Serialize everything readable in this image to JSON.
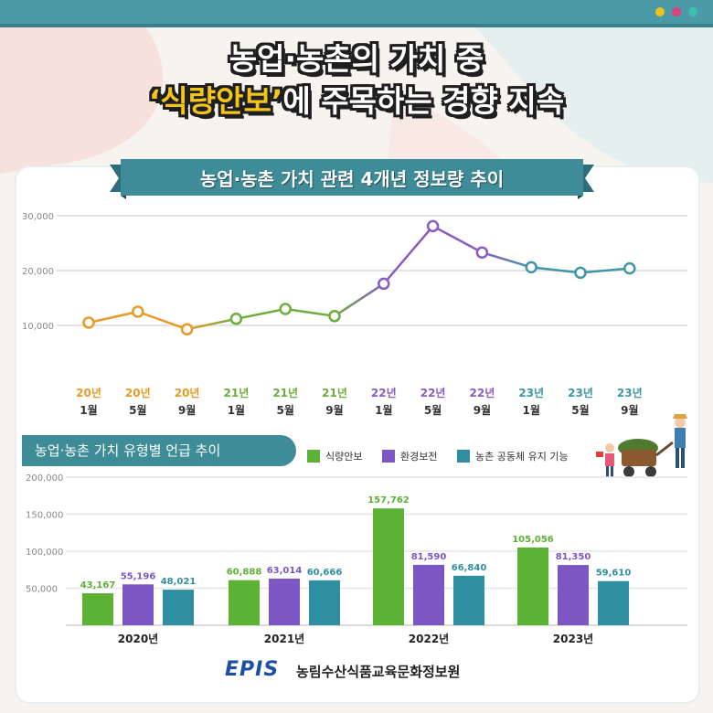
{
  "title": {
    "line1": "농업·농촌의 가치 중",
    "line2_highlight": "‘식량안보’",
    "line2_rest": "에 주목하는 경향 지속"
  },
  "window_dots": [
    "#f1c21b",
    "#e0407a",
    "#3fbfb0"
  ],
  "colors": {
    "orange": "#e79a27",
    "green": "#6cae3c",
    "purple": "#8a5cc0",
    "teal": "#3f96a6",
    "bar_green": "#5bb235",
    "bar_purple": "#7c56c2",
    "bar_teal": "#2f8fa0"
  },
  "chart_data": [
    {
      "type": "line",
      "title": "농업·농촌 가치 관련 4개년 정보량 추이",
      "x_years": [
        "20년",
        "20년",
        "20년",
        "21년",
        "21년",
        "21년",
        "22년",
        "22년",
        "22년",
        "23년",
        "23년",
        "23년"
      ],
      "x_months": [
        "1월",
        "5월",
        "9월",
        "1월",
        "5월",
        "9월",
        "1월",
        "5월",
        "9월",
        "1월",
        "5월",
        "9월"
      ],
      "values": [
        10500,
        12500,
        9300,
        11200,
        13000,
        11700,
        17600,
        28100,
        23300,
        20600,
        19600,
        20400
      ],
      "year_colors": [
        "orange",
        "orange",
        "orange",
        "green",
        "green",
        "green",
        "purple",
        "purple",
        "purple",
        "teal",
        "teal",
        "teal"
      ],
      "yticks": [
        "10,000",
        "20,000",
        "30,000"
      ],
      "ytick_values": [
        10000,
        20000,
        30000
      ],
      "ylim": [
        0,
        32000
      ],
      "grid": true
    },
    {
      "type": "bar",
      "title": "농업·농촌 가치 유형별 언급 추이",
      "categories": [
        "2020년",
        "2021년",
        "2022년",
        "2023년"
      ],
      "series": [
        {
          "name": "식량안보",
          "values": [
            43167,
            60888,
            157762,
            105056
          ],
          "labels": [
            "43,167",
            "60,888",
            "157,762",
            "105,056"
          ]
        },
        {
          "name": "환경보전",
          "values": [
            55196,
            63014,
            81590,
            81350
          ],
          "labels": [
            "55,196",
            "63,014",
            "81,590",
            "81,350"
          ]
        },
        {
          "name": "농촌 공동체 유지 기능",
          "values": [
            48021,
            60666,
            66840,
            59610
          ],
          "labels": [
            "48,021",
            "60,666",
            "66,840",
            "59,610"
          ]
        }
      ],
      "yticks": [
        "50,000",
        "100,000",
        "150,000",
        "200,000"
      ],
      "ytick_values": [
        50000,
        100000,
        150000,
        200000
      ],
      "ylim": [
        0,
        200000
      ],
      "grid": true
    }
  ],
  "footer": {
    "logo": "EPIS",
    "org": "농림수산식품교육문화정보원"
  }
}
